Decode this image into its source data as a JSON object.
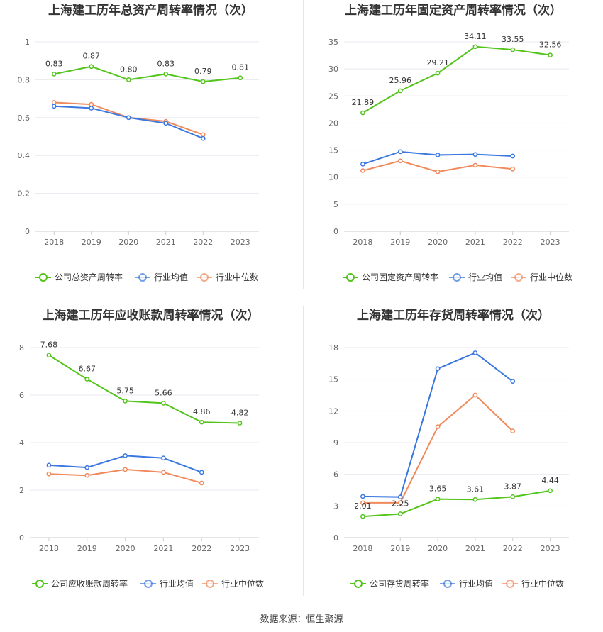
{
  "source": "数据来源：恒生聚源",
  "chart_data": [
    {
      "type": "line",
      "title": "上海建工历年总资产周转率情况（次）",
      "x": [
        "2018",
        "2019",
        "2020",
        "2021",
        "2022",
        "2023"
      ],
      "ylim": [
        0,
        1
      ],
      "yticks": [
        0,
        0.2,
        0.4,
        0.6,
        0.8,
        1
      ],
      "ytick_labels": [
        "0",
        "0.2",
        "0.4",
        "0.6",
        "0.8",
        "1"
      ],
      "grid": true,
      "legend_position": "bottom",
      "series": [
        {
          "name": "公司总资产周转率",
          "color": "#52c41a",
          "values": [
            0.83,
            0.87,
            0.8,
            0.83,
            0.79,
            0.81
          ],
          "labels": [
            "0.83",
            "0.87",
            "0.80",
            "0.83",
            "0.79",
            "0.81"
          ]
        },
        {
          "name": "行业均值",
          "color": "#3a78e0",
          "values": [
            0.66,
            0.65,
            0.6,
            0.57,
            0.49,
            null
          ]
        },
        {
          "name": "行业中位数",
          "color": "#f08a5d",
          "values": [
            0.68,
            0.67,
            0.6,
            0.58,
            0.51,
            null
          ]
        }
      ]
    },
    {
      "type": "line",
      "title": "上海建工历年固定资产周转率情况（次）",
      "x": [
        "2018",
        "2019",
        "2020",
        "2021",
        "2022",
        "2023"
      ],
      "ylim": [
        0,
        35
      ],
      "yticks": [
        0,
        5,
        10,
        15,
        20,
        25,
        30,
        35
      ],
      "ytick_labels": [
        "0",
        "5",
        "10",
        "15",
        "20",
        "25",
        "30",
        "35"
      ],
      "grid": true,
      "legend_position": "bottom",
      "series": [
        {
          "name": "公司固定资产周转率",
          "color": "#52c41a",
          "values": [
            21.89,
            25.96,
            29.21,
            34.11,
            33.55,
            32.56
          ],
          "labels": [
            "21.89",
            "25.96",
            "29.21",
            "34.11",
            "33.55",
            "32.56"
          ]
        },
        {
          "name": "行业均值",
          "color": "#3a78e0",
          "values": [
            12.4,
            14.7,
            14.1,
            14.2,
            13.9,
            null
          ]
        },
        {
          "name": "行业中位数",
          "color": "#f08a5d",
          "values": [
            11.2,
            13.0,
            11.0,
            12.2,
            11.5,
            null
          ]
        }
      ]
    },
    {
      "type": "line",
      "title": "上海建工历年应收账款周转率情况（次）",
      "x": [
        "2018",
        "2019",
        "2020",
        "2021",
        "2022",
        "2023"
      ],
      "ylim": [
        0,
        8
      ],
      "yticks": [
        0,
        2,
        4,
        6,
        8
      ],
      "ytick_labels": [
        "0",
        "2",
        "4",
        "6",
        "8"
      ],
      "grid": true,
      "legend_position": "bottom",
      "series": [
        {
          "name": "公司应收账款周转率",
          "color": "#52c41a",
          "values": [
            7.68,
            6.67,
            5.75,
            5.66,
            4.86,
            4.82
          ],
          "labels": [
            "7.68",
            "6.67",
            "5.75",
            "5.66",
            "4.86",
            "4.82"
          ]
        },
        {
          "name": "行业均值",
          "color": "#3a78e0",
          "values": [
            3.05,
            2.95,
            3.45,
            3.35,
            2.75,
            null
          ]
        },
        {
          "name": "行业中位数",
          "color": "#f08a5d",
          "values": [
            2.68,
            2.62,
            2.87,
            2.75,
            2.3,
            null
          ]
        }
      ]
    },
    {
      "type": "line",
      "title": "上海建工历年存货周转率情况（次）",
      "x": [
        "2018",
        "2019",
        "2020",
        "2021",
        "2022",
        "2023"
      ],
      "ylim": [
        0,
        18
      ],
      "yticks": [
        0,
        3,
        6,
        9,
        12,
        15,
        18
      ],
      "ytick_labels": [
        "0",
        "3",
        "6",
        "9",
        "12",
        "15",
        "18"
      ],
      "grid": true,
      "legend_position": "bottom",
      "series": [
        {
          "name": "公司存货周转率",
          "color": "#52c41a",
          "values": [
            2.01,
            2.25,
            3.65,
            3.61,
            3.87,
            4.44
          ],
          "labels": [
            "2.01",
            "2.25",
            "3.65",
            "3.61",
            "3.87",
            "4.44"
          ]
        },
        {
          "name": "行业均值",
          "color": "#3a78e0",
          "values": [
            3.9,
            3.85,
            16.0,
            17.5,
            14.8,
            null
          ]
        },
        {
          "name": "行业中位数",
          "color": "#f08a5d",
          "values": [
            3.3,
            3.3,
            10.5,
            13.5,
            10.1,
            null
          ]
        }
      ]
    }
  ]
}
